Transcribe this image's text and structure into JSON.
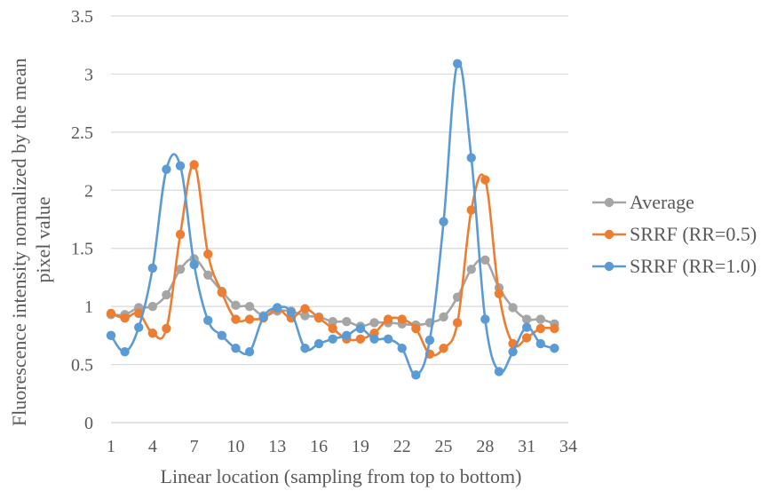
{
  "chart_data": {
    "type": "line",
    "title": "",
    "xlabel": "Linear location (sampling from top to bottom)",
    "ylabel_line1": "Fluorescence intensity normalized by the mean",
    "ylabel_line2": "pixel value",
    "xlim": [
      1,
      34
    ],
    "ylim": [
      0,
      3.5
    ],
    "xticks": [
      1,
      4,
      7,
      10,
      13,
      16,
      19,
      22,
      25,
      28,
      31,
      34
    ],
    "yticks": [
      0,
      0.5,
      1,
      1.5,
      2,
      2.5,
      3,
      3.5
    ],
    "ytick_labels": [
      "0",
      "0.5",
      "1",
      "1.5",
      "2",
      "2.5",
      "3",
      "3.5"
    ],
    "grid": "horizontal",
    "legend_position": "right",
    "x": [
      1,
      2,
      3,
      4,
      5,
      6,
      7,
      8,
      9,
      10,
      11,
      12,
      13,
      14,
      15,
      16,
      17,
      18,
      19,
      20,
      21,
      22,
      23,
      24,
      25,
      26,
      27,
      28,
      29,
      30,
      31,
      32,
      33
    ],
    "series": [
      {
        "name": "Average",
        "color": "#A5A5A5",
        "values": [
          0.93,
          0.93,
          0.99,
          1.0,
          1.1,
          1.32,
          1.41,
          1.27,
          1.13,
          1.01,
          1.0,
          0.92,
          0.96,
          0.96,
          0.92,
          0.91,
          0.87,
          0.87,
          0.83,
          0.86,
          0.86,
          0.85,
          0.84,
          0.86,
          0.91,
          1.08,
          1.32,
          1.4,
          1.16,
          0.99,
          0.89,
          0.89,
          0.85
        ]
      },
      {
        "name": "SRRF (RR=0.5)",
        "color": "#ED7D31",
        "values": [
          0.94,
          0.9,
          0.94,
          0.77,
          0.81,
          1.62,
          2.22,
          1.45,
          1.12,
          0.89,
          0.89,
          0.9,
          0.98,
          0.9,
          0.98,
          0.9,
          0.81,
          0.72,
          0.72,
          0.77,
          0.89,
          0.89,
          0.81,
          0.59,
          0.64,
          0.86,
          1.83,
          2.09,
          1.11,
          0.68,
          0.73,
          0.81,
          0.81
        ]
      },
      {
        "name": "SRRF (RR=1.0)",
        "color": "#5B9BD5",
        "values": [
          0.75,
          0.61,
          0.82,
          1.33,
          2.18,
          2.21,
          1.36,
          0.88,
          0.75,
          0.64,
          0.61,
          0.91,
          0.99,
          0.95,
          0.64,
          0.68,
          0.72,
          0.75,
          0.81,
          0.72,
          0.72,
          0.64,
          0.41,
          0.71,
          1.73,
          3.09,
          2.28,
          0.89,
          0.44,
          0.61,
          0.82,
          0.68,
          0.64
        ]
      }
    ]
  }
}
